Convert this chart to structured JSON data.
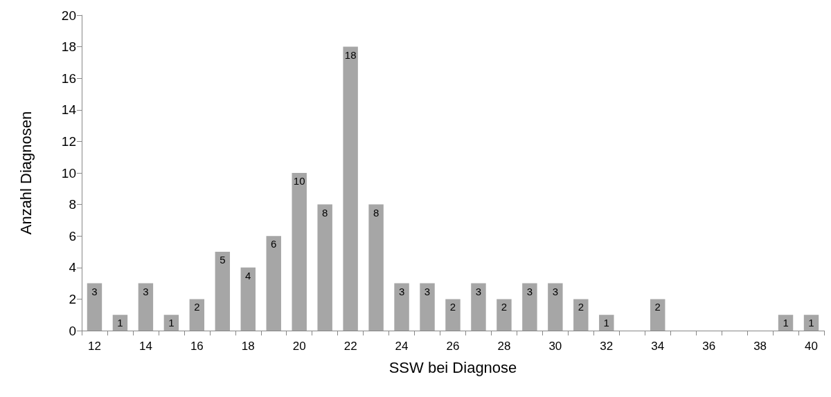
{
  "chart_data": {
    "type": "bar",
    "xlabel": "SSW bei Diagnose",
    "ylabel": "Anzahl Diagnosen",
    "categories": [
      "12",
      null,
      "14",
      null,
      "16",
      null,
      "18",
      null,
      "20",
      null,
      "22",
      null,
      "24",
      null,
      "26",
      null,
      "28",
      null,
      "30",
      null,
      "32",
      null,
      "34",
      null,
      "36",
      null,
      "38",
      null,
      "40"
    ],
    "values": [
      3,
      1,
      3,
      1,
      2,
      5,
      4,
      6,
      10,
      8,
      18,
      8,
      3,
      3,
      2,
      3,
      2,
      3,
      3,
      2,
      1,
      0,
      2,
      0,
      0,
      0,
      0,
      1,
      1
    ],
    "value_labels": [
      "3",
      "1",
      "3",
      "1",
      "2",
      "5",
      "4",
      "6",
      "10",
      "8",
      "18",
      "8",
      "3",
      "3",
      "2",
      "3",
      "2",
      "3",
      "3",
      "2",
      "1",
      null,
      "2",
      null,
      null,
      null,
      null,
      "1",
      "1"
    ],
    "color": "#a6a6a6",
    "ylim": [
      0,
      20
    ],
    "yticks": [
      0,
      2,
      4,
      6,
      8,
      10,
      12,
      14,
      16,
      18,
      20
    ],
    "grid": false
  }
}
